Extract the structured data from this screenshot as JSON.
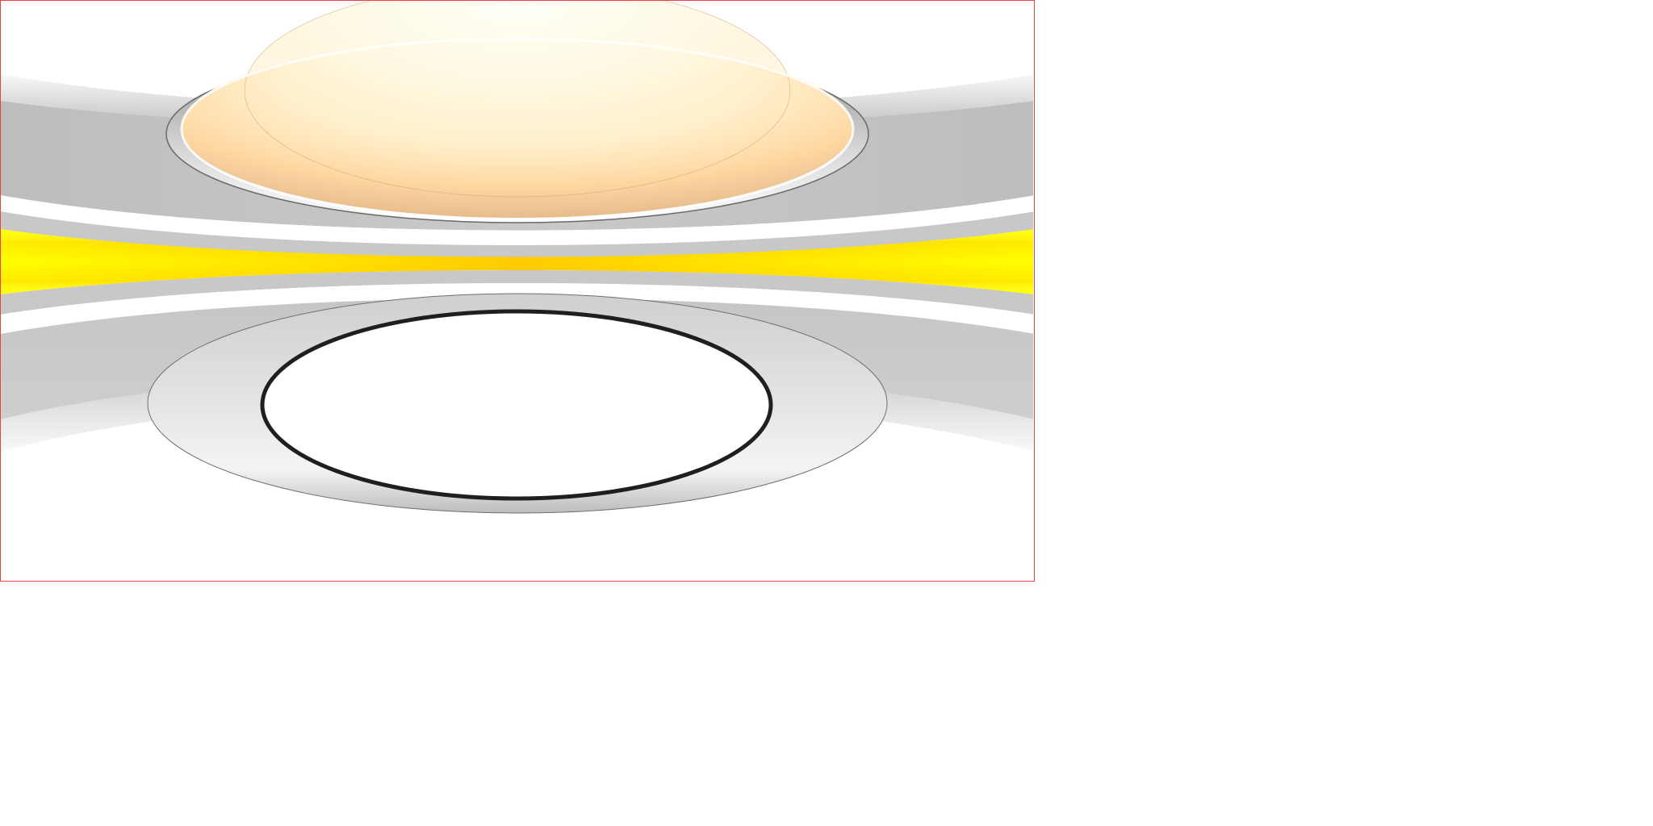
{
  "scene": {
    "description_free": true,
    "colors": {
      "background": "#ffffff",
      "frame_border": "#e8404a",
      "gray_band": "#c4c4c4",
      "gray_light": "#e6e6e6",
      "yellow_bright": "#ffff00",
      "yellow_deep": "#ffc800",
      "lens_light": "#fffbe6",
      "lens_warm": "#ffd59a",
      "lens_shade": "#e9b98a",
      "ring_stroke": "#222222",
      "outline_thin": "#777777"
    }
  }
}
